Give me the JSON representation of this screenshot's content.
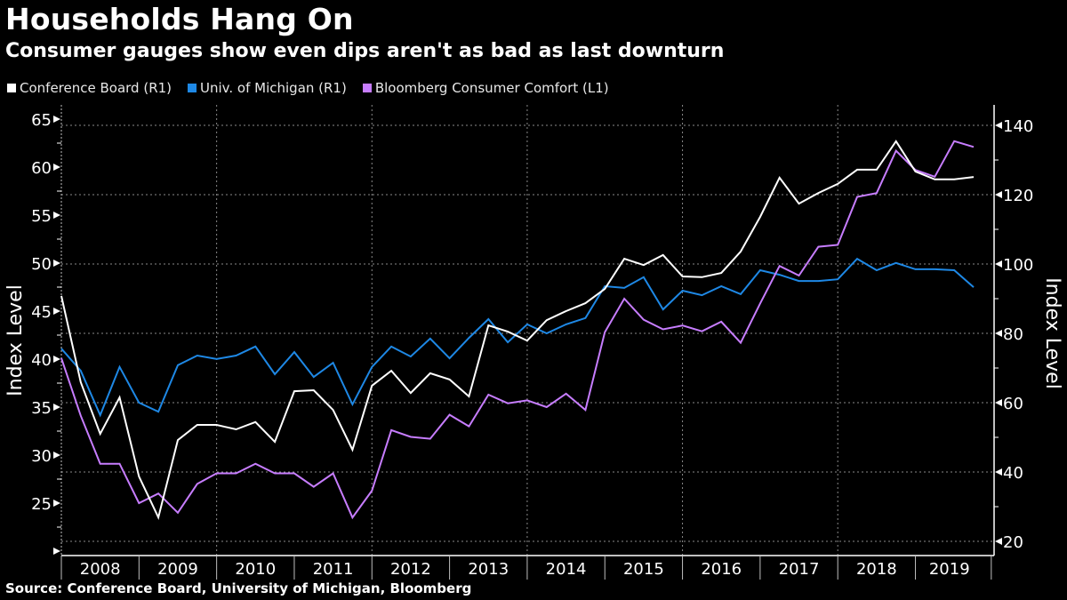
{
  "header": {
    "title": "Households Hang On",
    "subtitle": "Consumer gauges show even dips aren't as bad as last downturn"
  },
  "footer": {
    "source": "Source: Conference Board, University of Michigan, Bloomberg"
  },
  "chart_data": {
    "type": "line",
    "title": "Households Hang On",
    "subtitle": "Consumer gauges show even dips aren't as bad as last downturn",
    "frequency": "quarterly",
    "x_start": "2008 Q1",
    "x_end": "2019 Q4",
    "x_tick_labels": [
      "2008",
      "2009",
      "2010",
      "2011",
      "2012",
      "2013",
      "2014",
      "2015",
      "2016",
      "2017",
      "2018",
      "2019"
    ],
    "left_axis": {
      "label": "Index Level",
      "ylim": [
        20,
        67
      ],
      "ticks": [
        25,
        30,
        35,
        40,
        45,
        50,
        55,
        60,
        65
      ],
      "minor_ticks": [
        20,
        22.5,
        27.5,
        32.5,
        37.5,
        42.5,
        47.5,
        52.5,
        57.5,
        62.5
      ]
    },
    "right_axis": {
      "label": "Index Level",
      "ylim": [
        18,
        146
      ],
      "ticks": [
        20,
        40,
        60,
        80,
        100,
        120,
        140
      ],
      "minor_ticks": [
        30,
        50,
        70,
        90,
        110,
        130
      ]
    },
    "grid": true,
    "legend_position": "top-left",
    "series": [
      {
        "name": "Conference Board (R1)",
        "axis": "right",
        "color": "#ffffff",
        "values": [
          90.8,
          65.9,
          51.0,
          61.5,
          38.7,
          26.9,
          49.2,
          53.6,
          53.6,
          52.3,
          54.4,
          48.7,
          63.3,
          63.6,
          57.9,
          46.4,
          64.9,
          69.2,
          62.8,
          68.5,
          66.7,
          61.8,
          82.3,
          80.5,
          77.9,
          83.8,
          86.4,
          88.7,
          92.8,
          101.5,
          99.7,
          102.6,
          96.4,
          96.2,
          97.4,
          103.6,
          113.6,
          124.9,
          117.4,
          120.5,
          123.1,
          127.2,
          127.2,
          135.4,
          126.7,
          124.4,
          124.4,
          125.1
        ]
      },
      {
        "name": "Univ. of Michigan (R1)",
        "axis": "right",
        "color": "#1e88e5",
        "values": [
          75.6,
          69.2,
          56.4,
          70.3,
          60.0,
          57.4,
          70.8,
          73.6,
          72.6,
          73.6,
          76.2,
          68.2,
          74.6,
          67.4,
          71.5,
          59.5,
          70.3,
          76.2,
          73.3,
          78.5,
          72.8,
          78.7,
          84.1,
          77.4,
          82.6,
          80.0,
          82.6,
          84.4,
          93.6,
          93.1,
          96.2,
          86.9,
          92.3,
          91.0,
          93.6,
          91.3,
          98.2,
          96.9,
          95.1,
          95.1,
          95.6,
          101.5,
          98.2,
          100.3,
          98.5,
          98.5,
          98.2,
          93.3
        ]
      },
      {
        "name": "Bloomberg Consumer Comfort (L1)",
        "axis": "left",
        "color": "#c77dff",
        "values": [
          40.1,
          34.1,
          29.1,
          29.1,
          25.0,
          26.0,
          24.0,
          27.0,
          28.1,
          28.1,
          29.1,
          28.1,
          28.1,
          26.7,
          28.1,
          23.5,
          26.3,
          32.6,
          31.9,
          31.7,
          34.2,
          33.0,
          36.3,
          35.4,
          35.7,
          35.0,
          36.4,
          34.7,
          42.8,
          46.3,
          44.1,
          43.1,
          43.5,
          42.9,
          43.9,
          41.7,
          45.8,
          49.7,
          48.7,
          51.7,
          51.9,
          56.9,
          57.3,
          61.7,
          59.7,
          59.0,
          62.7,
          62.1
        ]
      }
    ]
  }
}
